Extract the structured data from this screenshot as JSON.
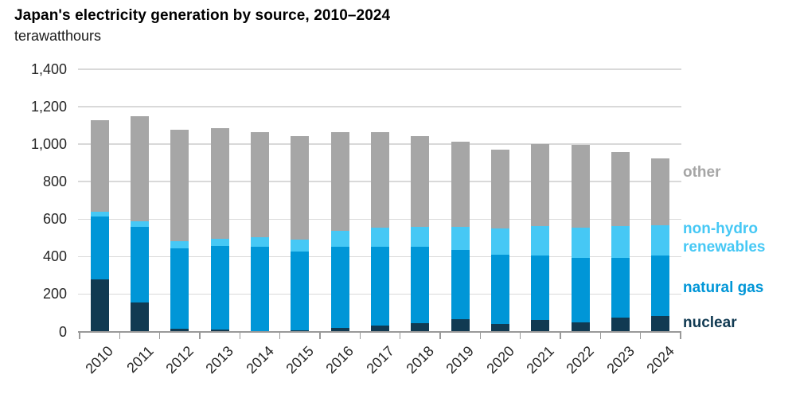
{
  "chart_data": {
    "type": "bar",
    "stacked": true,
    "title": "Japan's electricity generation by source, 2010–2024",
    "subtitle": "terawatthours",
    "categories": [
      "2010",
      "2011",
      "2012",
      "2013",
      "2014",
      "2015",
      "2016",
      "2017",
      "2018",
      "2019",
      "2020",
      "2021",
      "2022",
      "2023",
      "2024"
    ],
    "series": [
      {
        "name": "nuclear",
        "color": "#113a52",
        "values": [
          280,
          153,
          14,
          9,
          0,
          5,
          18,
          30,
          45,
          65,
          39,
          61,
          50,
          73,
          82
        ]
      },
      {
        "name": "natural gas",
        "color": "#0096d7",
        "values": [
          335,
          405,
          431,
          447,
          452,
          423,
          435,
          422,
          407,
          370,
          371,
          343,
          343,
          322,
          322
        ]
      },
      {
        "name": "non-hydro renewables",
        "color": "#46c8f5",
        "values": [
          25,
          32,
          38,
          40,
          53,
          63,
          85,
          103,
          107,
          123,
          141,
          158,
          162,
          170,
          165
        ]
      },
      {
        "name": "other",
        "color": "#a6a6a6",
        "values": [
          490,
          558,
          592,
          589,
          561,
          551,
          528,
          511,
          486,
          456,
          418,
          438,
          441,
          392,
          356
        ]
      }
    ],
    "totals": [
      1130,
      1148,
      1075,
      1085,
      1066,
      1042,
      1066,
      1066,
      1045,
      1014,
      969,
      1000,
      996,
      957,
      925
    ],
    "xlabel": "",
    "ylabel": "terawatthours",
    "ylim": [
      0,
      1400
    ],
    "ytick_values": [
      0,
      200,
      400,
      600,
      800,
      1000,
      1200,
      1400
    ],
    "ytick_labels": [
      "0",
      "200",
      "400",
      "600",
      "800",
      "1,000",
      "1,200",
      "1,400"
    ],
    "grid": true,
    "legend_position": "right",
    "colors": {
      "axis": "#999999",
      "gridline": "#d9d9d9",
      "title_text": "#000000",
      "axis_text": "#262626"
    }
  }
}
